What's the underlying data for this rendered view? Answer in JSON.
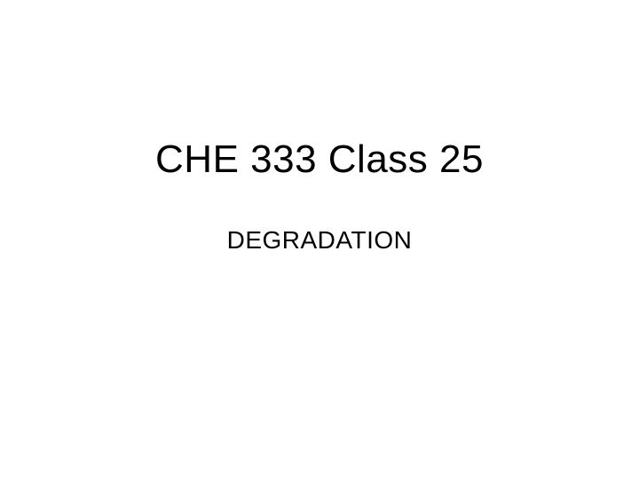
{
  "slide": {
    "title": "CHE 333 Class 25",
    "subtitle": "DEGRADATION",
    "background_color": "#ffffff",
    "text_color": "#000000",
    "title_fontsize": 44,
    "subtitle_fontsize": 28,
    "font_family": "Arial"
  }
}
